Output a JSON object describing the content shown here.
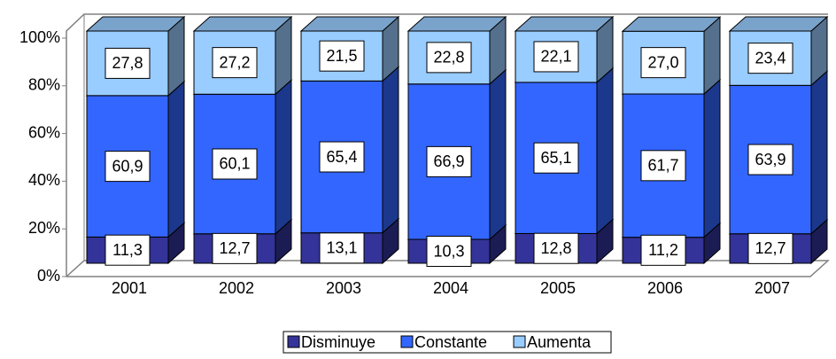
{
  "chart_data": {
    "type": "bar",
    "categories": [
      "2001",
      "2002",
      "2003",
      "2004",
      "2005",
      "2006",
      "2007"
    ],
    "series": [
      {
        "name": "Disminuye",
        "color": "#333399",
        "values": [
          11.3,
          12.7,
          13.1,
          10.3,
          12.8,
          11.2,
          12.7
        ],
        "value_labels": [
          "11,3",
          "12,7",
          "13,1",
          "10,3",
          "12,8",
          "11,2",
          "12,7"
        ]
      },
      {
        "name": "Constante",
        "color": "#3366ff",
        "values": [
          60.9,
          60.1,
          65.4,
          66.9,
          65.1,
          61.7,
          63.9
        ],
        "value_labels": [
          "60,9",
          "60,1",
          "65,4",
          "66,9",
          "65,1",
          "61,7",
          "63,9"
        ]
      },
      {
        "name": "Aumenta",
        "color": "#99ccff",
        "values": [
          27.8,
          27.2,
          21.5,
          22.8,
          22.1,
          27.0,
          23.4
        ],
        "value_labels": [
          "27,8",
          "27,2",
          "21,5",
          "22,8",
          "22,1",
          "27,0",
          "23,4"
        ]
      }
    ],
    "stacked": true,
    "ylim": [
      0,
      100
    ],
    "yticks": [
      {
        "value": 0,
        "label": "0%"
      },
      {
        "value": 20,
        "label": "20%"
      },
      {
        "value": 40,
        "label": "40%"
      },
      {
        "value": 60,
        "label": "60%"
      },
      {
        "value": 80,
        "label": "80%"
      },
      {
        "value": 100,
        "label": "100%"
      }
    ],
    "legend": "bottom"
  }
}
